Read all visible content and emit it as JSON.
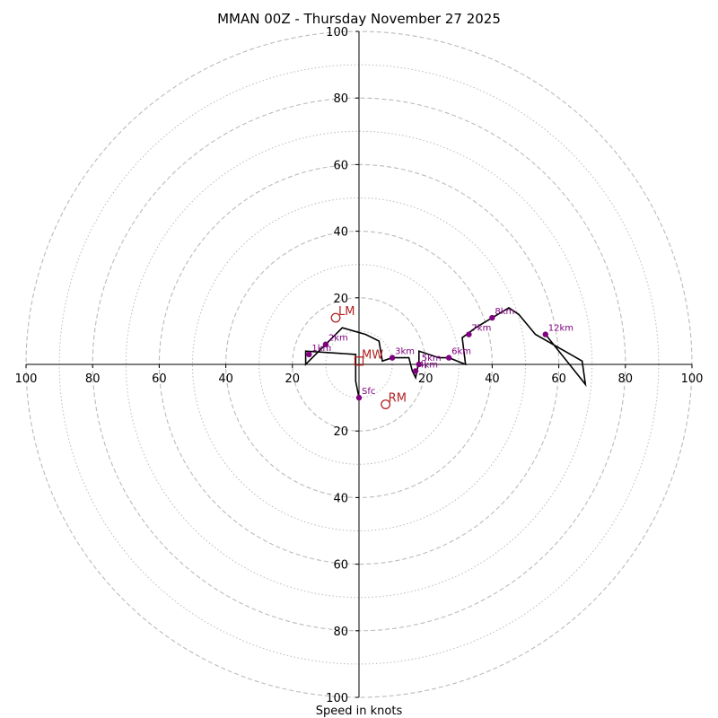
{
  "chart_data": {
    "type": "hodograph",
    "title": "MMAN 00Z - Thursday November 27 2025",
    "xlabel": "Speed in knots",
    "xlim": [
      -100,
      100
    ],
    "ylim": [
      -100,
      100
    ],
    "rings_major": [
      20,
      40,
      60,
      80,
      100
    ],
    "rings_minor": [
      10,
      30,
      50,
      70,
      90
    ],
    "x_ticks": [
      "100",
      "80",
      "60",
      "40",
      "20",
      "20",
      "40",
      "60",
      "80",
      "100"
    ],
    "y_ticks": [
      "100",
      "80",
      "60",
      "40",
      "20",
      "20",
      "40",
      "60",
      "80",
      "100"
    ],
    "trace": [
      {
        "u": 0,
        "v": -10
      },
      {
        "u": -1,
        "v": -5
      },
      {
        "u": -1,
        "v": 3
      },
      {
        "u": -16,
        "v": 4
      },
      {
        "u": -16,
        "v": 0
      },
      {
        "u": -10,
        "v": 6
      },
      {
        "u": -5,
        "v": 11
      },
      {
        "u": 2,
        "v": 9
      },
      {
        "u": 6,
        "v": 7
      },
      {
        "u": 7,
        "v": 1
      },
      {
        "u": 10,
        "v": 2
      },
      {
        "u": 15,
        "v": 2
      },
      {
        "u": 16,
        "v": -2
      },
      {
        "u": 17,
        "v": -4
      },
      {
        "u": 18,
        "v": 1
      },
      {
        "u": 18,
        "v": 4
      },
      {
        "u": 24,
        "v": 2
      },
      {
        "u": 27,
        "v": 2
      },
      {
        "u": 32,
        "v": 0
      },
      {
        "u": 31,
        "v": 8
      },
      {
        "u": 35,
        "v": 11
      },
      {
        "u": 40,
        "v": 14
      },
      {
        "u": 45,
        "v": 17
      },
      {
        "u": 48,
        "v": 15
      },
      {
        "u": 53,
        "v": 9
      },
      {
        "u": 60,
        "v": 5
      },
      {
        "u": 67,
        "v": 1
      },
      {
        "u": 68,
        "v": -6
      },
      {
        "u": 56,
        "v": 9
      }
    ],
    "height_markers": [
      {
        "label": "Sfc",
        "u": 0,
        "v": -10
      },
      {
        "label": "1km",
        "u": -15,
        "v": 3
      },
      {
        "label": "2km",
        "u": -10,
        "v": 6
      },
      {
        "label": "3km",
        "u": 10,
        "v": 2
      },
      {
        "label": "4km",
        "u": 17,
        "v": -2
      },
      {
        "label": "5km",
        "u": 18,
        "v": 0
      },
      {
        "label": "6km",
        "u": 27,
        "v": 2
      },
      {
        "label": "7km",
        "u": 33,
        "v": 9
      },
      {
        "label": "8km",
        "u": 40,
        "v": 14
      },
      {
        "label": "12km",
        "u": 56,
        "v": 9
      }
    ],
    "motion_markers": [
      {
        "label": "LM",
        "u": -7,
        "v": 14,
        "shape": "circle"
      },
      {
        "label": "MW",
        "u": 0,
        "v": 1,
        "shape": "square"
      },
      {
        "label": "RM",
        "u": 8,
        "v": -12,
        "shape": "circle"
      }
    ],
    "colors": {
      "trace": "#000000",
      "height_marker": "#800080",
      "motion_marker": "#b22222",
      "ring": "#bbbbbb"
    }
  }
}
